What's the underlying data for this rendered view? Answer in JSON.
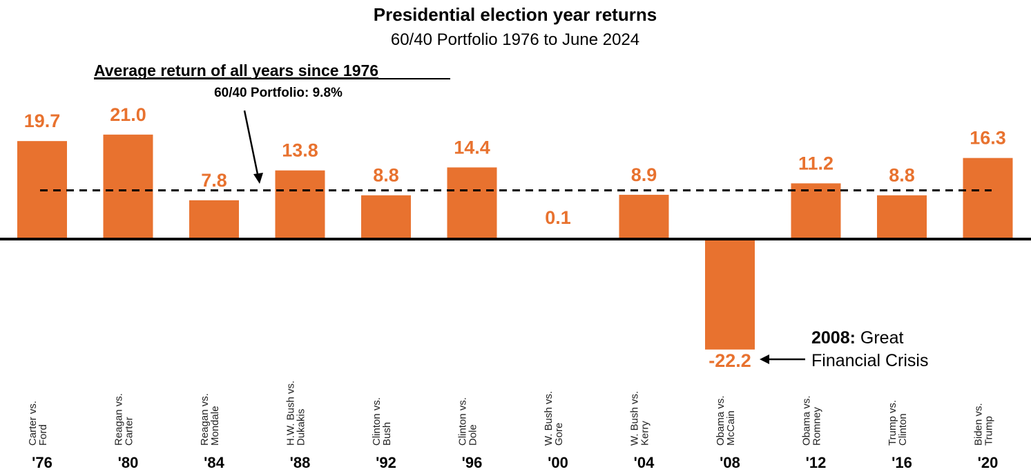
{
  "chart_data": {
    "type": "bar",
    "title": "Presidential election year returns",
    "subtitle": "60/40 Portfolio 1976 to June 2024",
    "categories": [
      "'76",
      "'80",
      "'84",
      "'88",
      "'92",
      "'96",
      "'00",
      "'04",
      "'08",
      "'12",
      "'16",
      "'20"
    ],
    "matchups": [
      [
        "Carter vs.",
        "Ford"
      ],
      [
        "Reagan vs.",
        "Carter"
      ],
      [
        "Reagan vs.",
        "Mondale"
      ],
      [
        "H.W. Bush vs.",
        "Dukakis"
      ],
      [
        "Clinton vs.",
        "Bush"
      ],
      [
        "Clinton vs.",
        "Dole"
      ],
      [
        "W. Bush vs.",
        "Gore"
      ],
      [
        "W. Bush vs.",
        "Kerry"
      ],
      [
        "Obama vs.",
        "McCain"
      ],
      [
        "Obama vs.",
        "Romney"
      ],
      [
        "Trump vs.",
        "Clinton"
      ],
      [
        "Biden vs.",
        "Trump"
      ]
    ],
    "values": [
      19.7,
      21.0,
      7.8,
      13.8,
      8.8,
      14.4,
      0.1,
      8.9,
      -22.2,
      11.2,
      8.8,
      16.3
    ],
    "value_labels": [
      "19.7",
      "21.0",
      "7.8",
      "13.8",
      "8.8",
      "14.4",
      "0.1",
      "8.9",
      "-22.2",
      "11.2",
      "8.8",
      "16.3"
    ],
    "average": 9.8,
    "average_heading": "Average return of all years since 1976",
    "average_label": "60/40 Portfolio: 9.8%",
    "annotation_bold": "2008:",
    "annotation_line1": " Great",
    "annotation_line2": "Financial Crisis",
    "bar_color": "#E8722F",
    "ylim": [
      -25,
      25
    ],
    "grid": false
  }
}
